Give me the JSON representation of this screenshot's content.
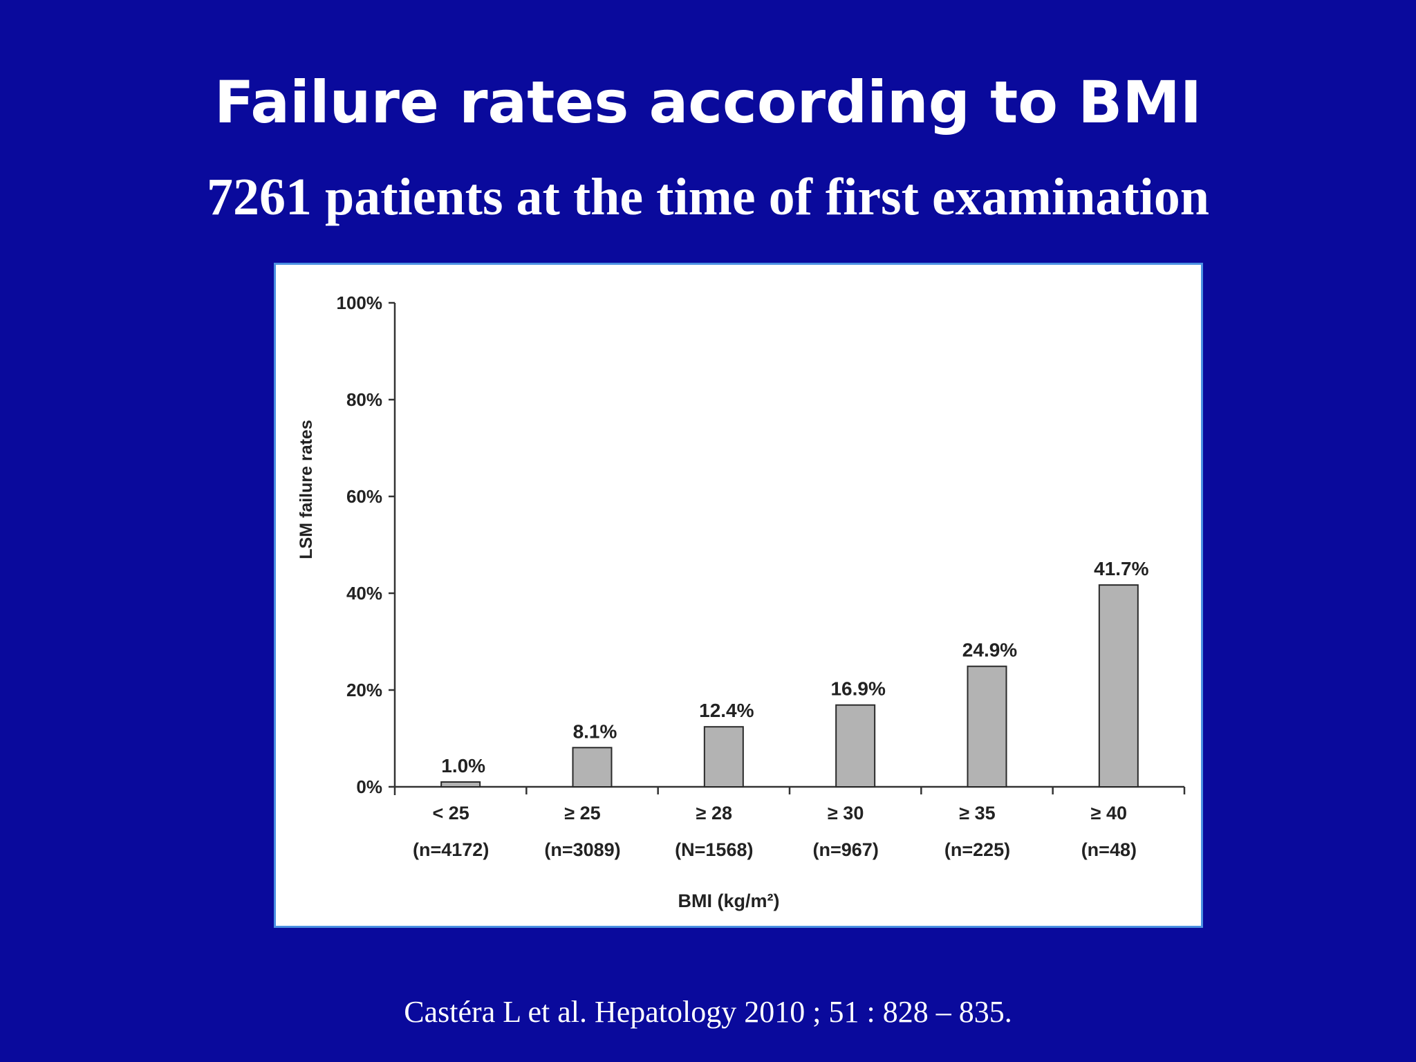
{
  "slide": {
    "title": "Failure rates according to BMI",
    "subtitle": "7261 patients at the time of first examination",
    "citation": "Castéra L et al.  Hepatology 2010 ; 51 : 828 – 835."
  },
  "colors": {
    "background": "#0a0a9c",
    "bar_fill": "#b3b3b3",
    "frame_border": "#4a90e2"
  },
  "chart_data": {
    "type": "bar",
    "categories": [
      "< 25",
      "≥ 25",
      "≥ 28",
      "≥ 30",
      "≥ 35",
      "≥ 40"
    ],
    "category_counts": [
      "(n=4172)",
      "(n=3089)",
      "(N=1568)",
      "(n=967)",
      "(n=225)",
      "(n=48)"
    ],
    "values": [
      1.0,
      8.1,
      12.4,
      16.9,
      24.9,
      41.7
    ],
    "value_labels": [
      "1.0%",
      "8.1%",
      "12.4%",
      "16.9%",
      "24.9%",
      "41.7%"
    ],
    "ylim": [
      0,
      100
    ],
    "yticks": [
      0,
      20,
      40,
      60,
      80,
      100
    ],
    "ytick_labels": [
      "0%",
      "20%",
      "40%",
      "60%",
      "80%",
      "100%"
    ],
    "xlabel": "BMI (kg/m²)",
    "ylabel": "LSM failure rates",
    "grid": false,
    "legend": "none"
  }
}
